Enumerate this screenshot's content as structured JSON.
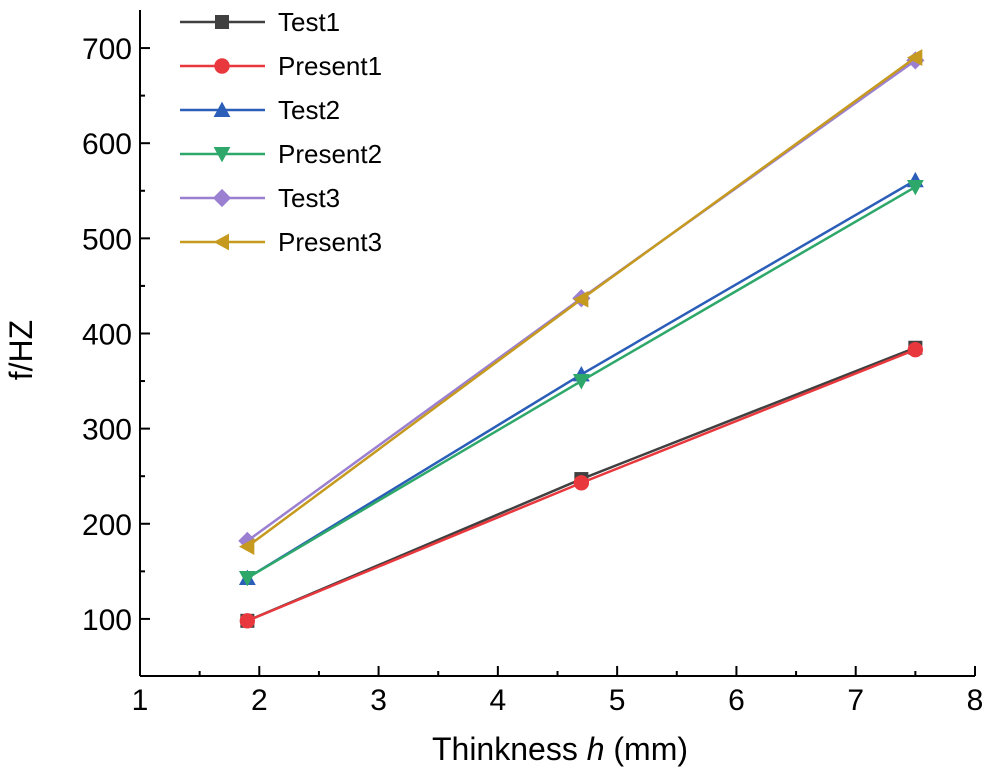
{
  "chart_data": {
    "type": "line",
    "title": "",
    "xlabel": "Thinkness",
    "xlabel_var": "h",
    "xlabel_unit": "(mm)",
    "ylabel": "f/HZ",
    "xlim": [
      1,
      8
    ],
    "ylim": [
      40,
      740
    ],
    "x_ticks": [
      1,
      2,
      3,
      4,
      5,
      6,
      7,
      8
    ],
    "y_ticks": [
      100,
      200,
      300,
      400,
      500,
      600,
      700
    ],
    "grid": false,
    "legend_position": "top-left",
    "x": [
      1.9,
      4.7,
      7.5
    ],
    "series": [
      {
        "name": "Test1",
        "color": "#404040",
        "marker": "square",
        "values": [
          98,
          247,
          385
        ]
      },
      {
        "name": "Present1",
        "color": "#e8383d",
        "marker": "circle",
        "values": [
          98,
          243,
          383
        ]
      },
      {
        "name": "Test2",
        "color": "#2b5eb8",
        "marker": "triangle-up",
        "values": [
          143,
          357,
          561
        ]
      },
      {
        "name": "Present2",
        "color": "#2ea86a",
        "marker": "triangle-down",
        "values": [
          143,
          350,
          554
        ]
      },
      {
        "name": "Test3",
        "color": "#9b7fd1",
        "marker": "diamond",
        "values": [
          182,
          437,
          687
        ]
      },
      {
        "name": "Present3",
        "color": "#c59a1e",
        "marker": "triangle-left",
        "values": [
          176,
          436,
          690
        ]
      }
    ]
  }
}
